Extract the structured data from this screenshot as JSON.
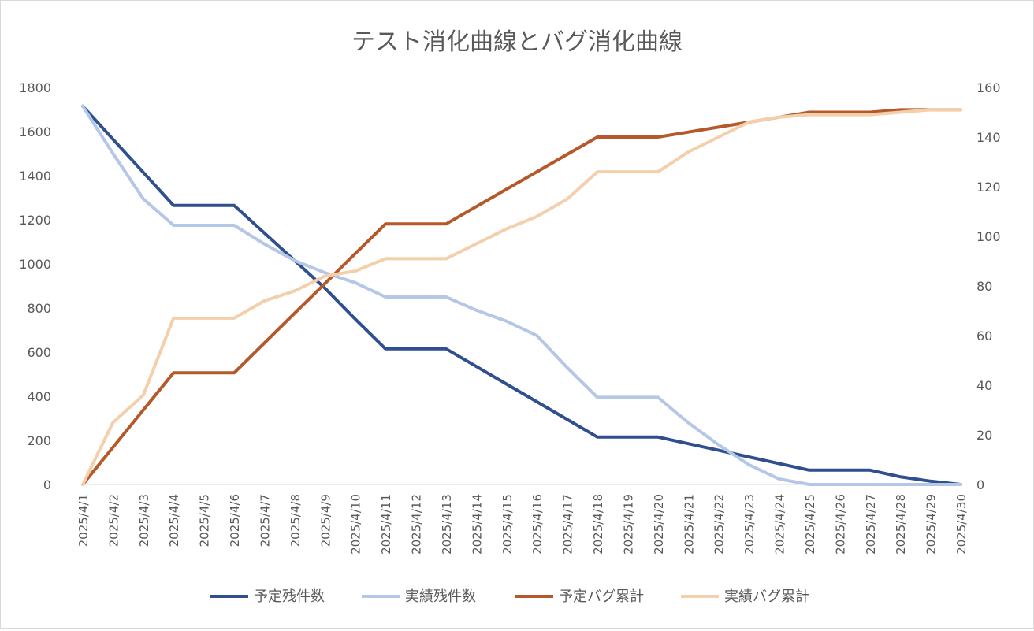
{
  "chart_data": {
    "type": "line",
    "title": "テスト消化曲線とバグ消化曲線",
    "categories": [
      "2025/4/1",
      "2025/4/2",
      "2025/4/3",
      "2025/4/4",
      "2025/4/5",
      "2025/4/6",
      "2025/4/7",
      "2025/4/8",
      "2025/4/9",
      "2025/4/10",
      "2025/4/11",
      "2025/4/12",
      "2025/4/13",
      "2025/4/14",
      "2025/4/15",
      "2025/4/16",
      "2025/4/17",
      "2025/4/18",
      "2025/4/19",
      "2025/4/20",
      "2025/4/21",
      "2025/4/22",
      "2025/4/23",
      "2025/4/24",
      "2025/4/25",
      "2025/4/26",
      "2025/4/27",
      "2025/4/28",
      "2025/4/29",
      "2025/4/30"
    ],
    "y_left": {
      "min": 0,
      "max": 1800,
      "ticks": [
        0,
        200,
        400,
        600,
        800,
        1000,
        1200,
        1400,
        1600,
        1800
      ],
      "tick_labels": [
        "0",
        "200",
        "400",
        "600",
        "800",
        "1000",
        "1200",
        "1400",
        "1600",
        "1800"
      ]
    },
    "y_right": {
      "min": 0,
      "max": 160,
      "ticks": [
        0,
        20,
        40,
        60,
        80,
        100,
        120,
        140,
        160
      ],
      "tick_labels": [
        "0",
        "20",
        "40",
        "60",
        "80",
        "100",
        "120",
        "140",
        "160"
      ]
    },
    "series": [
      {
        "name": "予定残件数",
        "axis": "left",
        "color": "#2f4f8f",
        "values": [
          1715,
          1565,
          1415,
          1265,
          1265,
          1265,
          1140,
          1015,
          890,
          750,
          615,
          615,
          615,
          535,
          455,
          375,
          295,
          215,
          215,
          215,
          185,
          155,
          125,
          95,
          65,
          65,
          65,
          35,
          15,
          0
        ]
      },
      {
        "name": "実績残件数",
        "axis": "left",
        "color": "#b4c7e7",
        "values": [
          1715,
          1500,
          1295,
          1175,
          1175,
          1175,
          1090,
          1015,
          960,
          915,
          850,
          850,
          850,
          790,
          740,
          675,
          530,
          395,
          395,
          395,
          280,
          180,
          90,
          25,
          0,
          0,
          0,
          0,
          0,
          0
        ]
      },
      {
        "name": "予定バグ累計",
        "axis": "right",
        "color": "#b5582a",
        "values": [
          0,
          15,
          30,
          45,
          45,
          45,
          57,
          69,
          81,
          93,
          105,
          105,
          105,
          112,
          119,
          126,
          133,
          140,
          140,
          140,
          142,
          144,
          146,
          148,
          150,
          150,
          150,
          151,
          151,
          151
        ]
      },
      {
        "name": "実績バグ累計",
        "axis": "right",
        "color": "#f3cfac",
        "values": [
          0,
          25,
          36,
          67,
          67,
          67,
          74,
          78,
          84,
          86,
          91,
          91,
          91,
          97,
          103,
          108,
          115,
          126,
          126,
          126,
          134,
          140,
          146,
          148,
          149,
          149,
          149,
          150,
          151,
          151
        ]
      }
    ],
    "legend_position": "bottom",
    "gridlines": "none"
  }
}
